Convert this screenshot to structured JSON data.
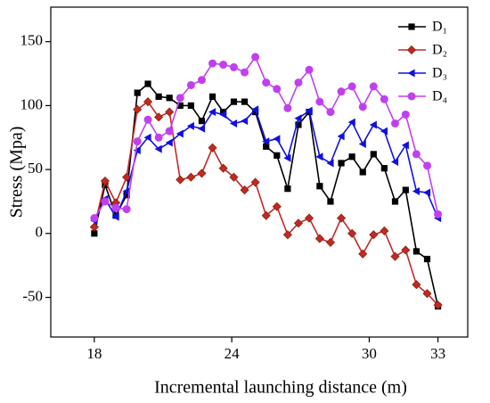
{
  "chart_data": {
    "type": "line",
    "xlabel": "Incremental launching distance (m)",
    "ylabel": "Stress (Mpa)",
    "x": [
      18,
      18.47,
      18.94,
      19.41,
      19.88,
      20.34,
      20.81,
      21.28,
      21.75,
      22.22,
      22.69,
      23.16,
      23.63,
      24.09,
      24.56,
      25.03,
      25.5,
      25.97,
      26.44,
      26.91,
      27.38,
      27.84,
      28.31,
      28.78,
      29.25,
      29.72,
      30.19,
      30.66,
      31.13,
      31.59,
      32.06,
      32.53,
      33
    ],
    "series": [
      {
        "name": "D₁",
        "color": "#000000",
        "marker": "square",
        "values": [
          0,
          38,
          14,
          30,
          110,
          117,
          107,
          106,
          100,
          100,
          88,
          107,
          95,
          103,
          103,
          95,
          68,
          61,
          35,
          85,
          95,
          37,
          25,
          55,
          60,
          48,
          62,
          51,
          25,
          34,
          -14,
          -20,
          -57
        ]
      },
      {
        "name": "D₂",
        "color": "#c0282a",
        "marker": "diamond",
        "values": [
          5,
          41,
          24,
          44,
          97,
          103,
          91,
          95,
          42,
          44,
          47,
          67,
          51,
          44,
          34,
          40,
          14,
          21,
          -1,
          8,
          12,
          -4,
          -7,
          12,
          0,
          -16,
          -1,
          2,
          -18,
          -13,
          -40,
          -47,
          -56
        ]
      },
      {
        "name": "D₃",
        "color": "#1010e0",
        "marker": "triangle-left",
        "values": [
          10,
          27,
          13,
          33,
          65,
          75,
          66,
          71,
          78,
          84,
          82,
          95,
          93,
          86,
          88,
          97,
          72,
          74,
          59,
          90,
          96,
          60,
          55,
          76,
          87,
          70,
          85,
          80,
          56,
          69,
          33,
          32,
          12
        ]
      },
      {
        "name": "D₄",
        "color": "#c040f0",
        "marker": "circle",
        "values": [
          12,
          25,
          20,
          19,
          72,
          89,
          75,
          80,
          106,
          116,
          120,
          133,
          132,
          130,
          126,
          138,
          118,
          113,
          98,
          118,
          128,
          103,
          95,
          111,
          115,
          99,
          115,
          105,
          86,
          93,
          62,
          53,
          15
        ]
      }
    ],
    "xlim": [
      16.1,
      34.3
    ],
    "xticks": [
      18,
      24,
      30,
      33
    ],
    "ylim": [
      -81,
      177
    ],
    "yticks": [
      -50,
      0,
      50,
      100,
      150
    ],
    "legend": "upper right"
  }
}
